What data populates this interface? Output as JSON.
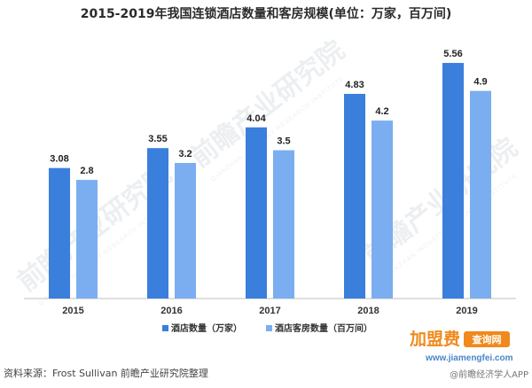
{
  "chart_data": {
    "type": "bar",
    "title": "2015-2019年我国连锁酒店数量和客房规模(单位：万家，百万间)",
    "categories": [
      "2015",
      "2016",
      "2017",
      "2018",
      "2019"
    ],
    "series": [
      {
        "name": "酒店数量（万家）",
        "values": [
          3.08,
          3.55,
          4.04,
          4.83,
          5.56
        ],
        "labels": [
          "3.08",
          "3.55",
          "4.04",
          "4.83",
          "5.56"
        ],
        "color": "#3a7fdc"
      },
      {
        "name": "酒店客房数量（百万间）",
        "values": [
          2.8,
          3.2,
          3.5,
          4.2,
          4.9
        ],
        "labels": [
          "2.8",
          "3.2",
          "3.5",
          "4.2",
          "4.9"
        ],
        "color": "#7aaef0"
      }
    ],
    "ylim": [
      0,
      6
    ],
    "grid": false,
    "legend_position": "bottom"
  },
  "source": "资料来源：Frost Sullivan 前瞻产业研究院整理",
  "watermark": {
    "text": "前瞻产业研究院",
    "sub": "QIANZHAN INDUSTRY RESEARCH INSTITUTE"
  },
  "branding": {
    "site_name": "加盟费",
    "site_badge": "查询网",
    "url": "www.jiamengfei.com",
    "app": "@前瞻经济学人APP"
  },
  "colors": {
    "axis": "#bfbfbf",
    "brand_orange": "#f08a1c",
    "brand_blue": "#3a7fdc"
  }
}
